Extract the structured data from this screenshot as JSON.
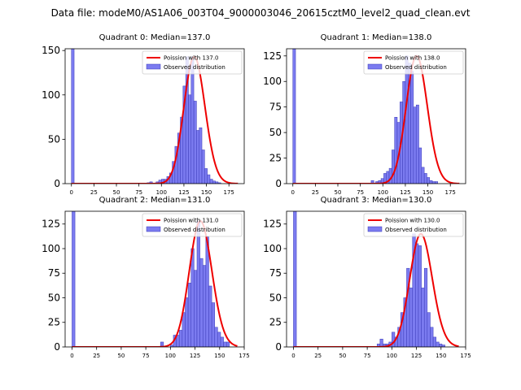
{
  "chart_data": {
    "type": "bar",
    "suptitle": "Data file: modeM0/AS1A06_003T04_9000003046_20615cztM0_level2_quad_clean.evt",
    "panels": [
      {
        "title": "Quadrant 0: Median=137.0",
        "legend_fit": "Poission with 137.0",
        "legend_obs": "Observed distribution",
        "legend_location": "upper right",
        "mu": 137,
        "xlim": [
          -7,
          192
        ],
        "ylim": [
          0,
          152
        ],
        "xticks": [
          0,
          25,
          50,
          75,
          100,
          125,
          150,
          175
        ],
        "yticks": [
          0,
          50,
          100,
          150
        ],
        "bins": [
          {
            "x": 0,
            "h": 152
          },
          {
            "x": 84,
            "h": 1
          },
          {
            "x": 87,
            "h": 2
          },
          {
            "x": 94,
            "h": 2
          },
          {
            "x": 97,
            "h": 4
          },
          {
            "x": 100,
            "h": 5
          },
          {
            "x": 103,
            "h": 5
          },
          {
            "x": 106,
            "h": 8
          },
          {
            "x": 109,
            "h": 12
          },
          {
            "x": 112,
            "h": 25
          },
          {
            "x": 115,
            "h": 42
          },
          {
            "x": 118,
            "h": 57
          },
          {
            "x": 121,
            "h": 75
          },
          {
            "x": 124,
            "h": 110
          },
          {
            "x": 127,
            "h": 143
          },
          {
            "x": 130,
            "h": 100
          },
          {
            "x": 133,
            "h": 143
          },
          {
            "x": 136,
            "h": 93
          },
          {
            "x": 139,
            "h": 60
          },
          {
            "x": 142,
            "h": 63
          },
          {
            "x": 145,
            "h": 38
          },
          {
            "x": 148,
            "h": 17
          },
          {
            "x": 151,
            "h": 10
          },
          {
            "x": 154,
            "h": 5
          },
          {
            "x": 157,
            "h": 3
          },
          {
            "x": 160,
            "h": 2
          },
          {
            "x": 163,
            "h": 1
          }
        ]
      },
      {
        "title": "Quadrant 1: Median=138.0",
        "legend_fit": "Poission with 138.0",
        "legend_obs": "Observed distribution",
        "legend_location": "upper right",
        "mu": 138,
        "xlim": [
          -7,
          192
        ],
        "ylim": [
          0,
          132
        ],
        "xticks": [
          0,
          25,
          50,
          75,
          100,
          125,
          150,
          175
        ],
        "yticks": [
          0,
          25,
          50,
          75,
          100,
          125
        ],
        "bins": [
          {
            "x": 0,
            "h": 132
          },
          {
            "x": 87,
            "h": 3
          },
          {
            "x": 92,
            "h": 2
          },
          {
            "x": 95,
            "h": 3
          },
          {
            "x": 98,
            "h": 5
          },
          {
            "x": 101,
            "h": 10
          },
          {
            "x": 104,
            "h": 12
          },
          {
            "x": 107,
            "h": 15
          },
          {
            "x": 110,
            "h": 33
          },
          {
            "x": 113,
            "h": 65
          },
          {
            "x": 116,
            "h": 60
          },
          {
            "x": 119,
            "h": 80
          },
          {
            "x": 122,
            "h": 100
          },
          {
            "x": 125,
            "h": 125
          },
          {
            "x": 128,
            "h": 118
          },
          {
            "x": 131,
            "h": 110
          },
          {
            "x": 134,
            "h": 75
          },
          {
            "x": 137,
            "h": 77
          },
          {
            "x": 140,
            "h": 35
          },
          {
            "x": 143,
            "h": 16
          },
          {
            "x": 146,
            "h": 10
          },
          {
            "x": 149,
            "h": 6
          },
          {
            "x": 152,
            "h": 3
          },
          {
            "x": 155,
            "h": 2
          },
          {
            "x": 158,
            "h": 2
          }
        ]
      },
      {
        "title": "Quadrant 2: Median=131.0",
        "legend_fit": "Poission with 131.0",
        "legend_obs": "Observed distribution",
        "legend_location": "upper right",
        "mu": 131,
        "xlim": [
          -7,
          175
        ],
        "ylim": [
          0,
          138
        ],
        "xticks": [
          0,
          25,
          50,
          75,
          100,
          125,
          150,
          175
        ],
        "yticks": [
          0,
          25,
          50,
          75,
          100,
          125
        ],
        "bins": [
          {
            "x": 0,
            "h": 138
          },
          {
            "x": 90,
            "h": 5
          },
          {
            "x": 100,
            "h": 2
          },
          {
            "x": 103,
            "h": 12
          },
          {
            "x": 106,
            "h": 12
          },
          {
            "x": 109,
            "h": 17
          },
          {
            "x": 112,
            "h": 35
          },
          {
            "x": 115,
            "h": 50
          },
          {
            "x": 118,
            "h": 65
          },
          {
            "x": 121,
            "h": 100
          },
          {
            "x": 124,
            "h": 78
          },
          {
            "x": 127,
            "h": 128
          },
          {
            "x": 130,
            "h": 90
          },
          {
            "x": 133,
            "h": 83
          },
          {
            "x": 136,
            "h": 112
          },
          {
            "x": 139,
            "h": 62
          },
          {
            "x": 142,
            "h": 45
          },
          {
            "x": 145,
            "h": 20
          },
          {
            "x": 148,
            "h": 15
          },
          {
            "x": 151,
            "h": 10
          },
          {
            "x": 154,
            "h": 5
          },
          {
            "x": 157,
            "h": 5
          }
        ]
      },
      {
        "title": "Quadrant 3: Median=130.0",
        "legend_fit": "Poission with 130.0",
        "legend_obs": "Observed distribution",
        "legend_location": "upper right",
        "mu": 130,
        "xlim": [
          -7,
          175
        ],
        "ylim": [
          0,
          138
        ],
        "xticks": [
          0,
          25,
          50,
          75,
          100,
          125,
          150,
          175
        ],
        "yticks": [
          0,
          25,
          50,
          75,
          100,
          125
        ],
        "bins": [
          {
            "x": 0,
            "h": 138
          },
          {
            "x": 85,
            "h": 3
          },
          {
            "x": 88,
            "h": 8
          },
          {
            "x": 91,
            "h": 3
          },
          {
            "x": 94,
            "h": 3
          },
          {
            "x": 97,
            "h": 5
          },
          {
            "x": 100,
            "h": 15
          },
          {
            "x": 103,
            "h": 10
          },
          {
            "x": 106,
            "h": 20
          },
          {
            "x": 109,
            "h": 35
          },
          {
            "x": 112,
            "h": 50
          },
          {
            "x": 115,
            "h": 80
          },
          {
            "x": 118,
            "h": 60
          },
          {
            "x": 121,
            "h": 115
          },
          {
            "x": 124,
            "h": 105
          },
          {
            "x": 127,
            "h": 103
          },
          {
            "x": 130,
            "h": 60
          },
          {
            "x": 133,
            "h": 80
          },
          {
            "x": 136,
            "h": 35
          },
          {
            "x": 139,
            "h": 20
          },
          {
            "x": 142,
            "h": 10
          },
          {
            "x": 145,
            "h": 5
          },
          {
            "x": 148,
            "h": 3
          },
          {
            "x": 151,
            "h": 2
          }
        ]
      }
    ],
    "colors": {
      "bar_fill": "#7b7bf0",
      "bar_edge": "#3b3bb8",
      "fit_line": "#ee0000"
    }
  }
}
